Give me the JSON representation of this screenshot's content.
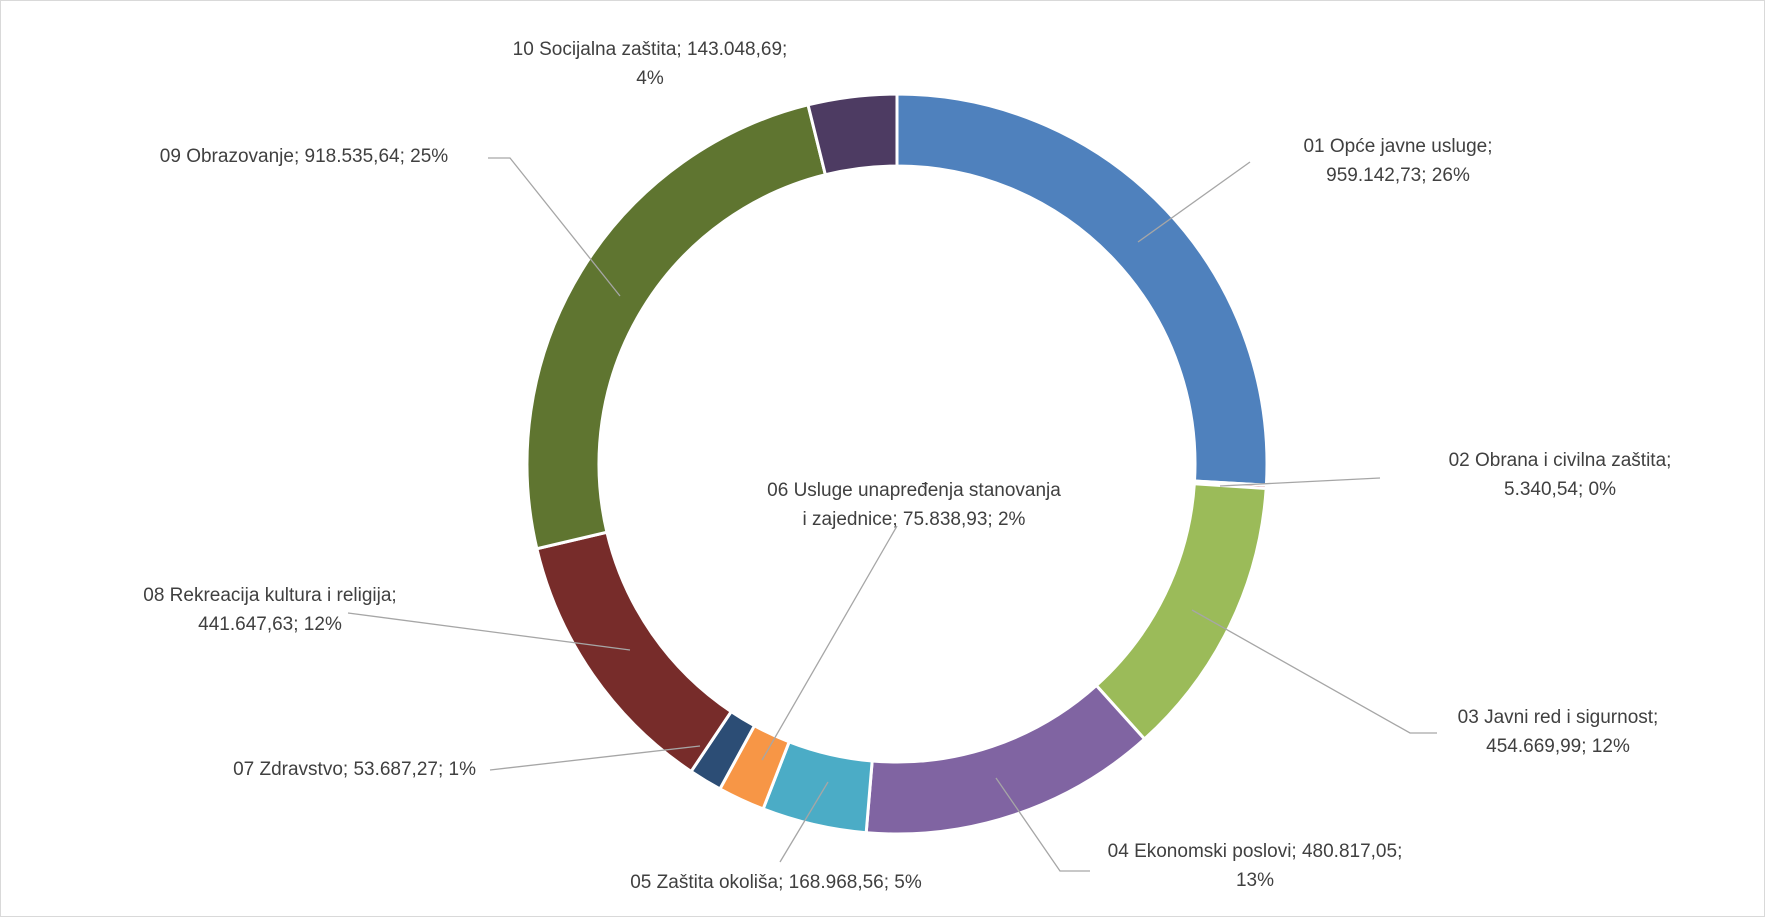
{
  "chart_data": {
    "type": "pie",
    "variant": "donut",
    "title": "",
    "legend": "none",
    "slices": [
      {
        "category": "01 Opće  javne usluge",
        "value": 959142.73,
        "percent": 26,
        "label_lines": [
          "01 Opće  javne usluge;",
          "959.142,73; 26%"
        ],
        "color": "#4f81bd"
      },
      {
        "category": "02 Obrana i civilna zaštita",
        "value": 5340.54,
        "percent": 0,
        "label_lines": [
          "02 Obrana i civilna zaštita;",
          "5.340,54; 0%"
        ],
        "color": "#c0504d"
      },
      {
        "category": "03 Javni red i sigurnost",
        "value": 454669.99,
        "percent": 12,
        "label_lines": [
          "03 Javni red i sigurnost;",
          "454.669,99; 12%"
        ],
        "color": "#9bbb59"
      },
      {
        "category": "04 Ekonomski poslovi",
        "value": 480817.05,
        "percent": 13,
        "label_lines": [
          "04 Ekonomski poslovi; 480.817,05;",
          "13%"
        ],
        "color": "#8064a2"
      },
      {
        "category": "05 Zaštita okoliša",
        "value": 168968.56,
        "percent": 5,
        "label_lines": [
          "05 Zaštita okoliša; 168.968,56; 5%"
        ],
        "color": "#4bacc6"
      },
      {
        "category": "06 Usluge unapređenja stanovanja i zajednice",
        "value": 75838.93,
        "percent": 2,
        "label_lines": [
          "06 Usluge unapređenja stanovanja",
          "i zajednice; 75.838,93; 2%"
        ],
        "color": "#f79646"
      },
      {
        "category": "07 Zdravstvo",
        "value": 53687.27,
        "percent": 1,
        "label_lines": [
          "07 Zdravstvo; 53.687,27; 1%"
        ],
        "color": "#2c4d75"
      },
      {
        "category": "08 Rekreacija kultura i religija",
        "value": 441647.63,
        "percent": 12,
        "label_lines": [
          "08 Rekreacija kultura i religija;",
          "441.647,63; 12%"
        ],
        "color": "#772c2a"
      },
      {
        "category": "09 Obrazovanje",
        "value": 918535.64,
        "percent": 25,
        "label_lines": [
          "09 Obrazovanje; 918.535,64; 25%"
        ],
        "color": "#5f7530"
      },
      {
        "category": "10 Socijalna zaštita",
        "value": 143048.69,
        "percent": 4,
        "label_lines": [
          "10 Socijalna zaštita; 143.048,69;",
          "4%"
        ],
        "color": "#4d3b62"
      }
    ]
  }
}
